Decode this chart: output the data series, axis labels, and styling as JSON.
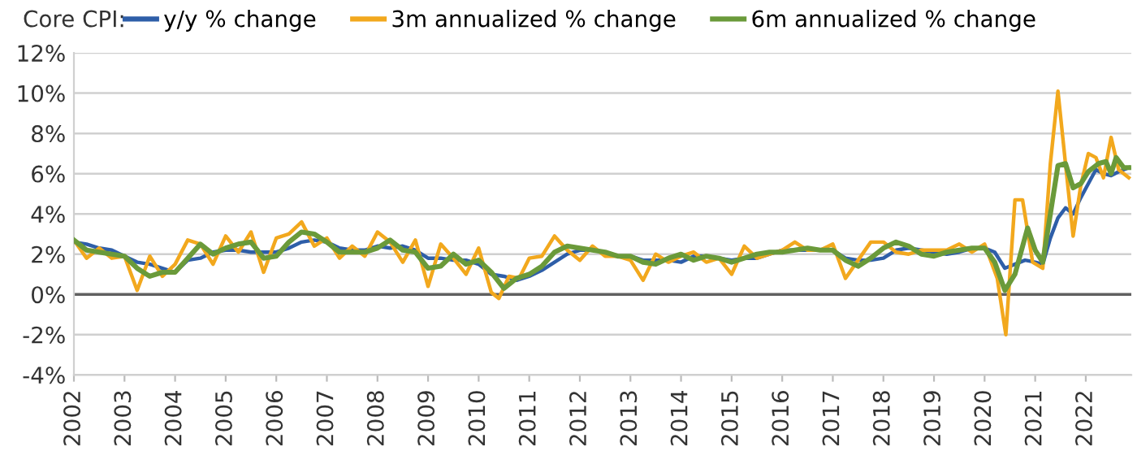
{
  "chart_data": {
    "type": "line",
    "legend_title": "Core CPI:",
    "legend": "top left",
    "grid": "y",
    "line_style": "solid",
    "marker": "none",
    "xlim": [
      2002,
      2022.9
    ],
    "xticks": [
      2002,
      2003,
      2004,
      2005,
      2006,
      2007,
      2008,
      2009,
      2010,
      2011,
      2012,
      2013,
      2014,
      2015,
      2016,
      2017,
      2018,
      2019,
      2020,
      2021,
      2022
    ],
    "ylim": [
      -4,
      12
    ],
    "yticks": [
      {
        "value": -4,
        "label": "-4%"
      },
      {
        "value": -2,
        "label": "-2%"
      },
      {
        "value": 0,
        "label": "0%"
      },
      {
        "value": 2,
        "label": "2%"
      },
      {
        "value": 4,
        "label": "4%"
      },
      {
        "value": 6,
        "label": "6%"
      },
      {
        "value": 8,
        "label": "8%"
      },
      {
        "value": 10,
        "label": "10%"
      },
      {
        "value": 12,
        "label": "12%"
      }
    ],
    "ref_lines": [
      {
        "axis": "y",
        "value": 0,
        "color": "#606060"
      }
    ],
    "series": [
      {
        "name": "y/y % change",
        "color": "#2e5ea8",
        "x": [
          2002.0,
          2002.25,
          2002.5,
          2002.75,
          2003.0,
          2003.25,
          2003.5,
          2003.75,
          2004.0,
          2004.25,
          2004.5,
          2004.75,
          2005.0,
          2005.25,
          2005.5,
          2005.75,
          2006.0,
          2006.25,
          2006.5,
          2006.75,
          2007.0,
          2007.25,
          2007.5,
          2007.75,
          2008.0,
          2008.25,
          2008.5,
          2008.75,
          2009.0,
          2009.25,
          2009.5,
          2009.75,
          2010.0,
          2010.25,
          2010.5,
          2010.75,
          2011.0,
          2011.25,
          2011.5,
          2011.75,
          2012.0,
          2012.25,
          2012.5,
          2012.75,
          2013.0,
          2013.25,
          2013.5,
          2013.75,
          2014.0,
          2014.25,
          2014.5,
          2014.75,
          2015.0,
          2015.25,
          2015.5,
          2015.75,
          2016.0,
          2016.25,
          2016.5,
          2016.75,
          2017.0,
          2017.25,
          2017.5,
          2017.75,
          2018.0,
          2018.25,
          2018.5,
          2018.75,
          2019.0,
          2019.25,
          2019.5,
          2019.75,
          2020.0,
          2020.2,
          2020.4,
          2020.6,
          2020.8,
          2021.0,
          2021.15,
          2021.3,
          2021.45,
          2021.6,
          2021.75,
          2021.9,
          2022.05,
          2022.2,
          2022.35,
          2022.5,
          2022.65,
          2022.85
        ],
        "values": [
          2.6,
          2.5,
          2.3,
          2.2,
          1.9,
          1.6,
          1.5,
          1.3,
          1.1,
          1.7,
          1.8,
          2.1,
          2.2,
          2.2,
          2.1,
          2.1,
          2.1,
          2.3,
          2.6,
          2.7,
          2.6,
          2.3,
          2.2,
          2.2,
          2.4,
          2.3,
          2.4,
          2.2,
          1.8,
          1.8,
          1.7,
          1.7,
          1.5,
          1.0,
          0.9,
          0.7,
          0.9,
          1.2,
          1.6,
          2.0,
          2.2,
          2.2,
          2.1,
          1.9,
          1.9,
          1.7,
          1.7,
          1.7,
          1.6,
          1.9,
          1.9,
          1.8,
          1.7,
          1.8,
          1.8,
          2.0,
          2.2,
          2.2,
          2.2,
          2.2,
          2.2,
          1.8,
          1.7,
          1.7,
          1.8,
          2.2,
          2.3,
          2.2,
          2.1,
          2.0,
          2.1,
          2.3,
          2.3,
          2.1,
          1.3,
          1.5,
          1.7,
          1.6,
          1.5,
          2.8,
          3.8,
          4.3,
          4.0,
          4.8,
          5.5,
          6.2,
          6.0,
          5.9,
          6.1,
          6.3
        ]
      },
      {
        "name": "3m annualized % change",
        "color": "#f2a81d",
        "x": [
          2002.0,
          2002.25,
          2002.5,
          2002.75,
          2003.0,
          2003.25,
          2003.5,
          2003.75,
          2004.0,
          2004.25,
          2004.5,
          2004.75,
          2005.0,
          2005.25,
          2005.5,
          2005.75,
          2006.0,
          2006.25,
          2006.5,
          2006.75,
          2007.0,
          2007.25,
          2007.5,
          2007.75,
          2008.0,
          2008.25,
          2008.5,
          2008.75,
          2009.0,
          2009.25,
          2009.5,
          2009.75,
          2010.0,
          2010.25,
          2010.4,
          2010.6,
          2010.8,
          2011.0,
          2011.25,
          2011.5,
          2011.75,
          2012.0,
          2012.25,
          2012.5,
          2012.75,
          2013.0,
          2013.25,
          2013.5,
          2013.75,
          2014.0,
          2014.25,
          2014.5,
          2014.75,
          2015.0,
          2015.25,
          2015.5,
          2015.75,
          2016.0,
          2016.25,
          2016.5,
          2016.75,
          2017.0,
          2017.25,
          2017.5,
          2017.75,
          2018.0,
          2018.25,
          2018.5,
          2018.75,
          2019.0,
          2019.25,
          2019.5,
          2019.75,
          2020.0,
          2020.25,
          2020.42,
          2020.6,
          2020.75,
          2020.95,
          2021.15,
          2021.3,
          2021.45,
          2021.62,
          2021.75,
          2021.9,
          2022.05,
          2022.2,
          2022.35,
          2022.5,
          2022.65,
          2022.85
        ],
        "values": [
          2.7,
          1.8,
          2.3,
          1.8,
          1.9,
          0.2,
          1.9,
          0.9,
          1.5,
          2.7,
          2.5,
          1.5,
          2.9,
          2.1,
          3.1,
          1.1,
          2.8,
          3.0,
          3.6,
          2.4,
          2.8,
          1.8,
          2.4,
          1.9,
          3.1,
          2.6,
          1.6,
          2.7,
          0.4,
          2.5,
          1.8,
          1.0,
          2.3,
          0.1,
          -0.2,
          0.9,
          0.8,
          1.8,
          1.9,
          2.9,
          2.2,
          1.7,
          2.4,
          1.9,
          1.9,
          1.7,
          0.7,
          2.0,
          1.6,
          1.9,
          2.1,
          1.6,
          1.8,
          1.0,
          2.4,
          1.8,
          2.0,
          2.2,
          2.6,
          2.2,
          2.2,
          2.5,
          0.8,
          1.7,
          2.6,
          2.6,
          2.1,
          2.0,
          2.2,
          2.2,
          2.2,
          2.5,
          2.1,
          2.5,
          0.8,
          -2.0,
          4.7,
          4.7,
          1.6,
          1.3,
          6.5,
          10.1,
          6.0,
          2.9,
          5.4,
          7.0,
          6.8,
          5.8,
          7.8,
          6.2,
          5.8
        ]
      },
      {
        "name": "6m annualized % change",
        "color": "#6a9a3a",
        "x": [
          2002.0,
          2002.25,
          2002.5,
          2002.75,
          2003.0,
          2003.25,
          2003.5,
          2003.75,
          2004.0,
          2004.25,
          2004.5,
          2004.75,
          2005.0,
          2005.25,
          2005.5,
          2005.75,
          2006.0,
          2006.25,
          2006.5,
          2006.75,
          2007.0,
          2007.25,
          2007.5,
          2007.75,
          2008.0,
          2008.25,
          2008.5,
          2008.75,
          2009.0,
          2009.25,
          2009.5,
          2009.75,
          2010.0,
          2010.25,
          2010.5,
          2010.75,
          2011.0,
          2011.25,
          2011.5,
          2011.75,
          2012.0,
          2012.25,
          2012.5,
          2012.75,
          2013.0,
          2013.25,
          2013.5,
          2013.75,
          2014.0,
          2014.25,
          2014.5,
          2014.75,
          2015.0,
          2015.25,
          2015.5,
          2015.75,
          2016.0,
          2016.25,
          2016.5,
          2016.75,
          2017.0,
          2017.25,
          2017.5,
          2017.75,
          2018.0,
          2018.25,
          2018.5,
          2018.75,
          2019.0,
          2019.25,
          2019.5,
          2019.75,
          2020.0,
          2020.2,
          2020.4,
          2020.6,
          2020.85,
          2021.0,
          2021.15,
          2021.3,
          2021.45,
          2021.6,
          2021.75,
          2021.9,
          2022.05,
          2022.25,
          2022.4,
          2022.5,
          2022.6,
          2022.75,
          2022.85
        ],
        "values": [
          2.7,
          2.2,
          2.1,
          2.0,
          1.9,
          1.3,
          0.9,
          1.1,
          1.1,
          1.8,
          2.5,
          2.0,
          2.3,
          2.5,
          2.6,
          1.8,
          1.9,
          2.6,
          3.1,
          3.0,
          2.6,
          2.1,
          2.1,
          2.1,
          2.3,
          2.7,
          2.2,
          2.1,
          1.3,
          1.4,
          2.0,
          1.5,
          1.7,
          1.1,
          0.3,
          0.8,
          1.0,
          1.4,
          2.1,
          2.4,
          2.3,
          2.2,
          2.1,
          1.9,
          1.9,
          1.6,
          1.5,
          1.8,
          2.0,
          1.7,
          1.9,
          1.8,
          1.6,
          1.8,
          2.0,
          2.1,
          2.1,
          2.2,
          2.3,
          2.2,
          2.2,
          1.7,
          1.4,
          1.8,
          2.3,
          2.6,
          2.4,
          2.0,
          1.9,
          2.1,
          2.2,
          2.3,
          2.3,
          1.6,
          0.2,
          1.0,
          3.3,
          2.2,
          1.6,
          4.0,
          6.4,
          6.5,
          5.3,
          5.5,
          6.1,
          6.5,
          6.6,
          6.0,
          6.8,
          6.3,
          6.3
        ]
      }
    ]
  }
}
